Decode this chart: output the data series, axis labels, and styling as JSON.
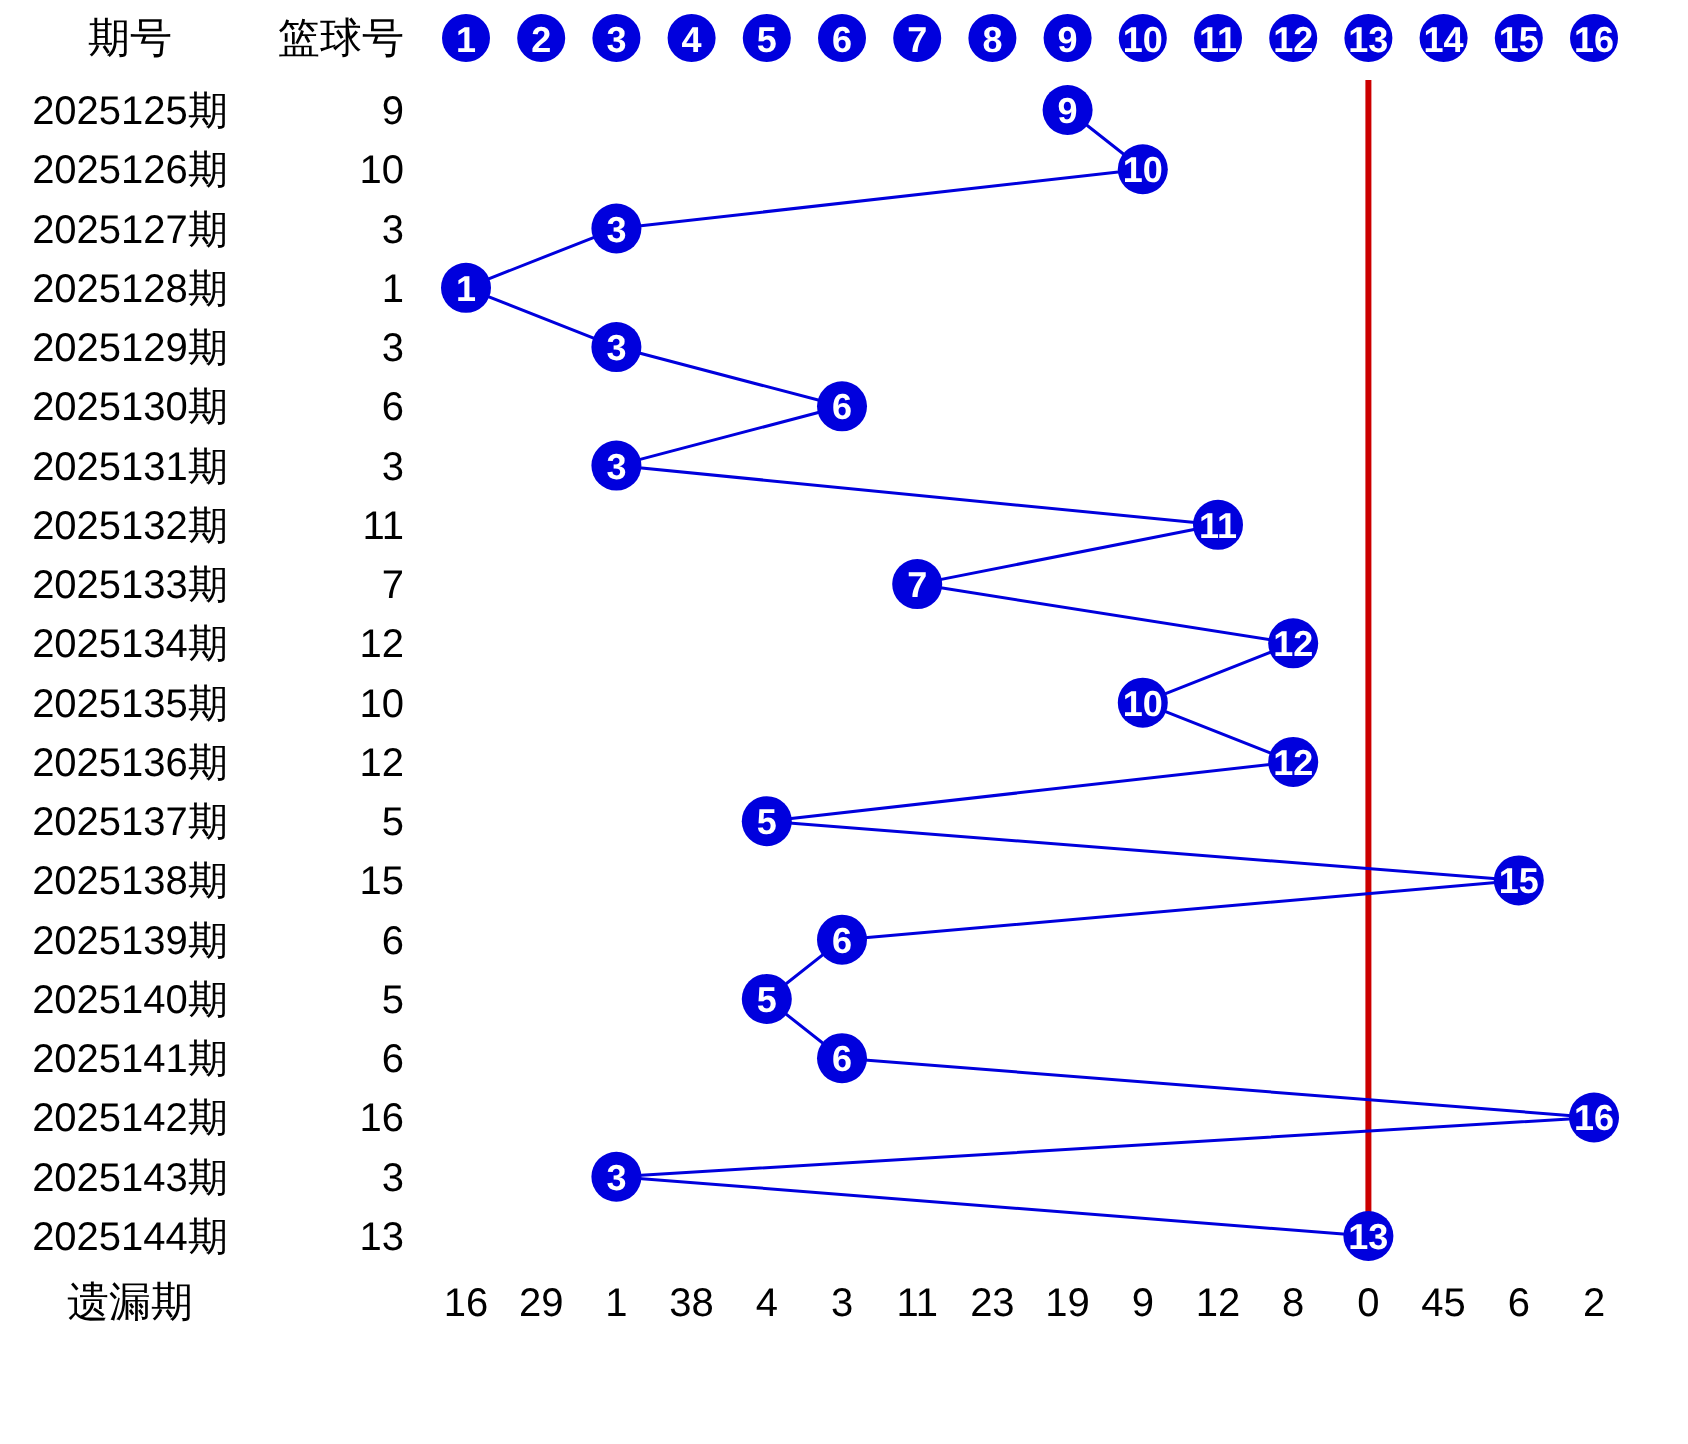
{
  "chart_data": {
    "type": "line",
    "orientation": "horizontal",
    "ylabel": "期号",
    "xlabel": "遗漏期",
    "annotations": [
      "篮球号",
      "9",
      "10",
      "3",
      "1",
      "3",
      "6",
      "3",
      "11",
      "7",
      "12",
      "10",
      "12",
      "5",
      "15",
      "6",
      "5",
      "6",
      "16",
      "3",
      "13",
      "16",
      "29",
      "1",
      "38",
      "4",
      "3",
      "11",
      "23",
      "19",
      "9",
      "12",
      "8",
      "0",
      "45",
      "6",
      "2"
    ],
    "categories": [
      "2025125期",
      "2025126期",
      "2025127期",
      "2025128期",
      "2025129期",
      "2025130期",
      "2025131期",
      "2025132期",
      "2025133期",
      "2025134期",
      "2025135期",
      "2025136期",
      "2025137期",
      "2025138期",
      "2025139期",
      "2025140期",
      "2025141期",
      "2025142期",
      "2025143期",
      "2025144期"
    ],
    "values": [
      9,
      10,
      3,
      1,
      3,
      6,
      3,
      11,
      7,
      12,
      10,
      12,
      5,
      15,
      6,
      5,
      6,
      16,
      3,
      13
    ],
    "value_labels": [
      "9",
      "10",
      "3",
      "1",
      "3",
      "6",
      "3",
      "11",
      "7",
      "12",
      "10",
      "12",
      "5",
      "15",
      "6",
      "5",
      "6",
      "16",
      "3",
      "13"
    ],
    "color": "#0000dd",
    "marker": "circle",
    "xlim": [
      1,
      16
    ],
    "xticks": [
      1,
      2,
      3,
      4,
      5,
      6,
      7,
      8,
      9,
      10,
      11,
      12,
      13,
      14,
      15,
      16
    ],
    "ref_lines": [
      {
        "axis": "x",
        "value": 13,
        "color": "#cc0000"
      }
    ]
  }
}
